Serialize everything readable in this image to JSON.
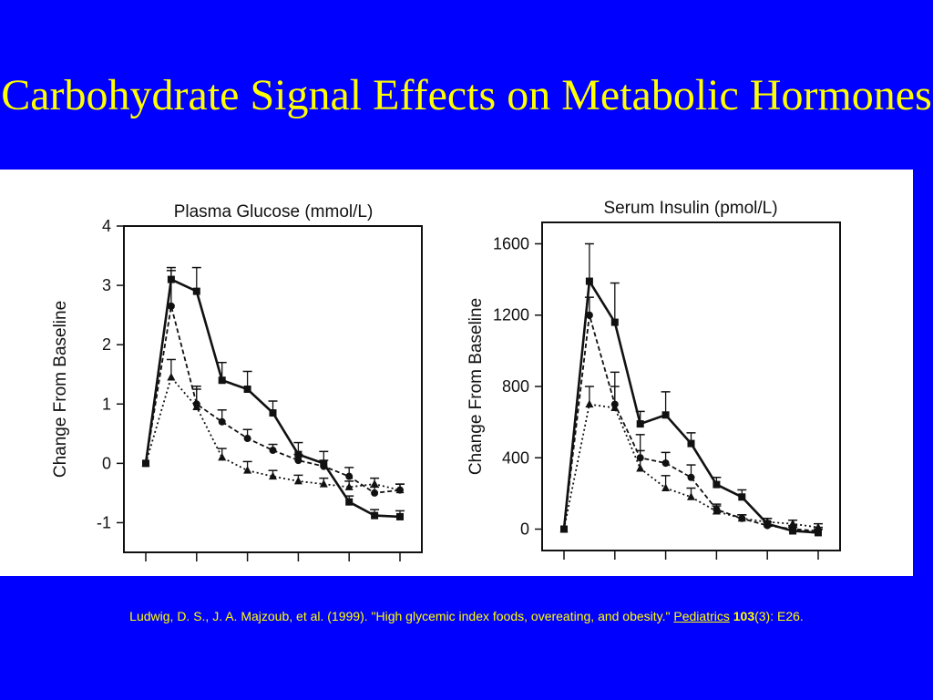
{
  "slide": {
    "title": "Carbohydrate Signal Effects on Metabolic Hormones",
    "citation": {
      "text": "Ludwig, D. S., J. A. Majzoub, et al. (1999). \"High glycemic index foods, overeating, and obesity.\" ",
      "journal": "Pediatrics",
      "volume": "103",
      "issue": "(3): E26."
    },
    "colors": {
      "background": "#0000ff",
      "text": "#ffff00",
      "panel": "#ffffff"
    }
  },
  "chart_data": [
    {
      "type": "line",
      "title": "Plasma Glucose (mmol/L)",
      "ylabel": "Change From Baseline",
      "xlabel": "",
      "ylim": [
        -1.5,
        4
      ],
      "yticks": [
        4,
        3,
        2,
        1,
        0,
        -1
      ],
      "x": [
        0,
        0.5,
        1,
        1.5,
        2,
        2.5,
        3,
        3.5,
        4,
        4.5,
        5
      ],
      "xlim": [
        0,
        5
      ],
      "grid": false,
      "series": [
        {
          "marker": "square",
          "line": "solid",
          "values": [
            0,
            3.1,
            2.9,
            1.4,
            1.25,
            0.85,
            0.15,
            0.0,
            -0.65,
            -0.88,
            -0.9
          ],
          "err": [
            0,
            0.2,
            0.4,
            0.3,
            0.3,
            0.2,
            0.2,
            0.2,
            0.1,
            0.1,
            0.1
          ]
        },
        {
          "marker": "circle",
          "line": "dashed",
          "values": [
            0,
            2.65,
            1.0,
            0.7,
            0.42,
            0.22,
            0.05,
            -0.05,
            -0.22,
            -0.5,
            -0.45
          ],
          "err": [
            0,
            0.6,
            0.3,
            0.2,
            0.15,
            0.1,
            0.1,
            0.1,
            0.15,
            0.1,
            0.1
          ]
        },
        {
          "marker": "triangle",
          "line": "dotted",
          "values": [
            0,
            1.45,
            0.95,
            0.1,
            -0.12,
            -0.22,
            -0.3,
            -0.35,
            -0.4,
            -0.35,
            -0.45
          ],
          "err": [
            0,
            0.3,
            0.3,
            0.15,
            0.15,
            0.1,
            0.1,
            0.1,
            0.1,
            0.1,
            0.1
          ]
        }
      ]
    },
    {
      "type": "line",
      "title": "Serum Insulin (pmol/L)",
      "ylabel": "Change From Baseline",
      "xlabel": "",
      "ylim": [
        -120,
        1720
      ],
      "yticks": [
        1600,
        1200,
        800,
        400,
        0
      ],
      "x": [
        0,
        0.5,
        1,
        1.5,
        2,
        2.5,
        3,
        3.5,
        4,
        4.5,
        5
      ],
      "xlim": [
        0,
        5
      ],
      "grid": false,
      "series": [
        {
          "marker": "square",
          "line": "solid",
          "values": [
            0,
            1390,
            1160,
            590,
            640,
            480,
            250,
            180,
            30,
            -10,
            -20
          ],
          "err": [
            0,
            210,
            220,
            70,
            130,
            60,
            40,
            40,
            30,
            20,
            20
          ]
        },
        {
          "marker": "circle",
          "line": "dashed",
          "values": [
            0,
            1200,
            700,
            400,
            370,
            290,
            110,
            60,
            20,
            0,
            -10
          ],
          "err": [
            0,
            100,
            180,
            130,
            60,
            70,
            30,
            20,
            20,
            20,
            20
          ]
        },
        {
          "marker": "triangle",
          "line": "dotted",
          "values": [
            0,
            700,
            680,
            340,
            230,
            180,
            100,
            60,
            40,
            30,
            10
          ],
          "err": [
            0,
            100,
            120,
            100,
            70,
            50,
            30,
            20,
            20,
            20,
            20
          ]
        }
      ]
    }
  ]
}
